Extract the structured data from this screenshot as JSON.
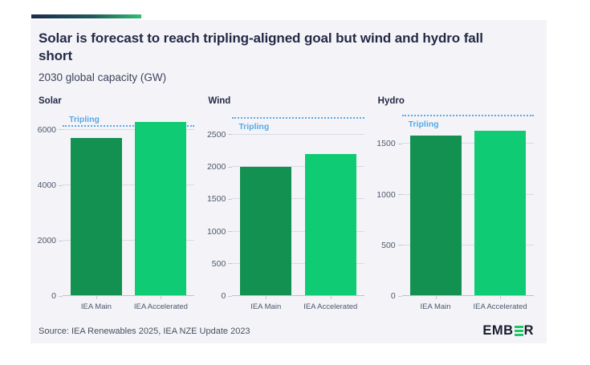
{
  "header": {
    "title": "Solar is forecast to reach tripling-aligned goal but wind and hydro fall short",
    "subtitle": "2030 global capacity (GW)"
  },
  "footer": {
    "source": "Source: IEA Renewables 2025, IEA NZE Update 2023",
    "logo": {
      "prefix": "EMB",
      "suffix": "R",
      "stylized_e": "three-green-bars-icon"
    }
  },
  "colors": {
    "bar_main": "#129150",
    "bar_accelerated": "#0fcb73",
    "tripling_line": "#57a9e8",
    "title_text": "#232a46",
    "axis_text": "#4d576b",
    "card_background": "#f4f4f8",
    "gridline": "#d8dbe4",
    "axis_line": "#bcc2d0",
    "accent_gradient_start": "#1c2b4a",
    "accent_gradient_end": "#35bb74",
    "logo_text": "#191d2f",
    "logo_green": "#1fc96a"
  },
  "chart_data": [
    {
      "type": "bar",
      "title": "Solar",
      "categories": [
        "IEA Main",
        "IEA Accelerated"
      ],
      "values": [
        5700,
        6300
      ],
      "tripling_goal": 6100,
      "tripling_label": "Tripling",
      "tripling_label_position": "above",
      "yticks": [
        0,
        2000,
        4000,
        6000
      ],
      "ylim": [
        0,
        6600
      ],
      "grid": true,
      "ylabel": "",
      "xlabel": ""
    },
    {
      "type": "bar",
      "title": "Wind",
      "categories": [
        "IEA Main",
        "IEA Accelerated"
      ],
      "values": [
        2000,
        2200
      ],
      "tripling_goal": 2750,
      "tripling_label": "Tripling",
      "tripling_label_position": "below",
      "yticks": [
        0,
        500,
        1000,
        1500,
        2000,
        2500
      ],
      "ylim": [
        0,
        2830
      ],
      "grid": true,
      "ylabel": "",
      "xlabel": ""
    },
    {
      "type": "bar",
      "title": "Hydro",
      "categories": [
        "IEA Main",
        "IEA Accelerated"
      ],
      "values": [
        1580,
        1630
      ],
      "tripling_goal": 1770,
      "tripling_label": "Tripling",
      "tripling_label_position": "below",
      "yticks": [
        0,
        500,
        1000,
        1500
      ],
      "ylim": [
        0,
        1800
      ],
      "grid": true,
      "ylabel": "",
      "xlabel": ""
    }
  ]
}
